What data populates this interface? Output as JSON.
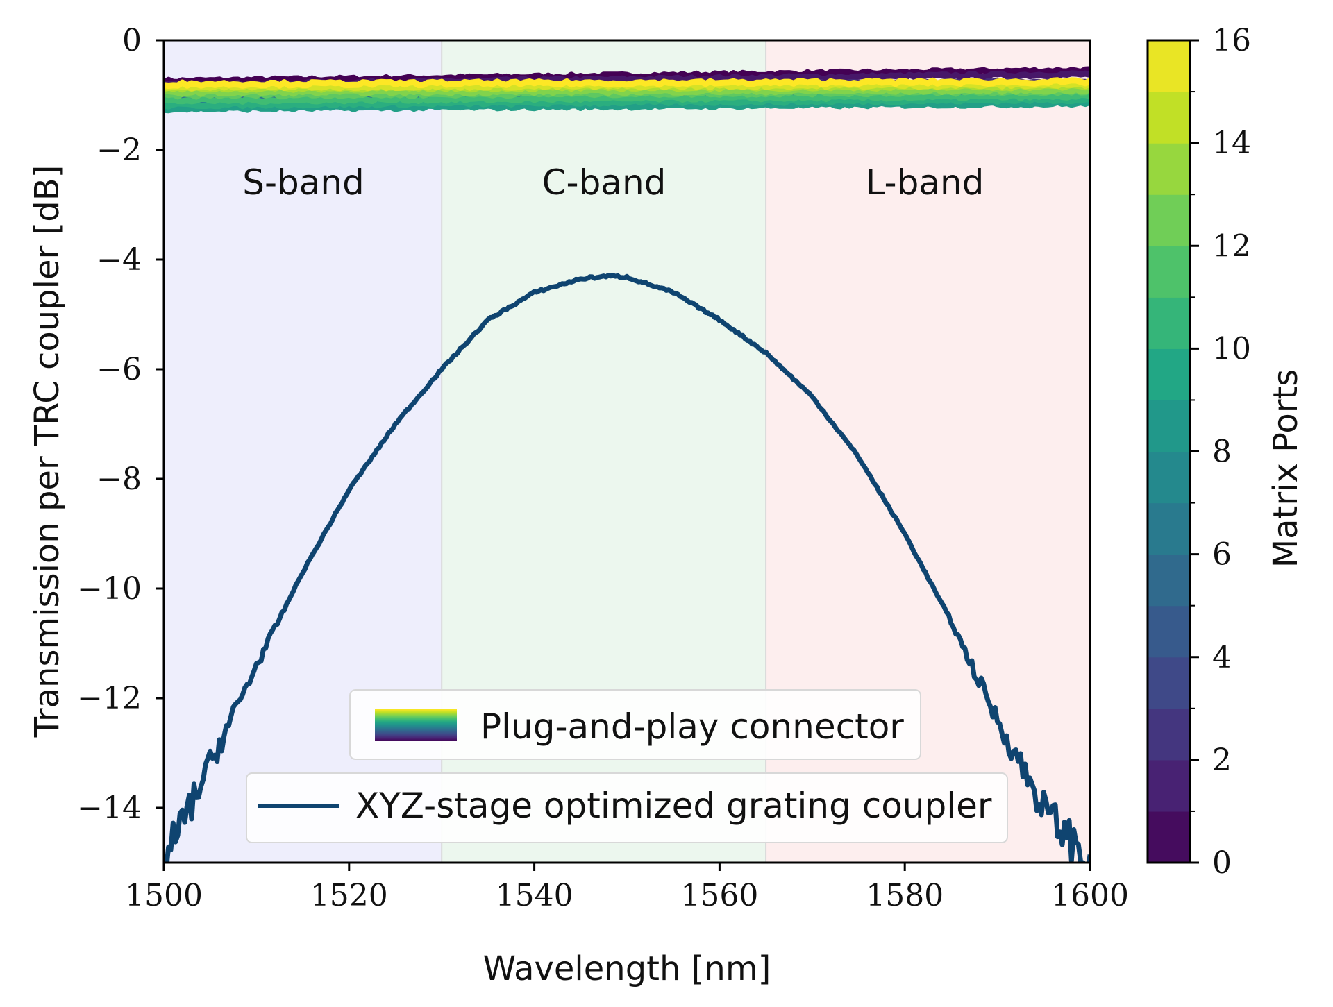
{
  "chart_data": {
    "type": "line",
    "xlabel": "Wavelength [nm]",
    "ylabel": "Transmission per TRC coupler [dB]",
    "xlim": [
      1500,
      1600
    ],
    "ylim": [
      -15,
      0
    ],
    "x_ticks": [
      "1500",
      "1520",
      "1540",
      "1560",
      "1580",
      "1600"
    ],
    "y_ticks": [
      "0",
      "−2",
      "−4",
      "−6",
      "−8",
      "−10",
      "−12",
      "−14"
    ],
    "grid": false,
    "bands": [
      {
        "label": "S-band",
        "x_start": 1500,
        "x_end": 1530,
        "color": "#eeeefc"
      },
      {
        "label": "C-band",
        "x_start": 1530,
        "x_end": 1565,
        "color": "#ecf7ee"
      },
      {
        "label": "L-band",
        "x_start": 1565,
        "x_end": 1600,
        "color": "#fdeeee"
      }
    ],
    "series": [
      {
        "name": "XYZ-stage optimized grating coupler",
        "color": "#0f4470",
        "x": [
          1500,
          1505,
          1510,
          1515,
          1520,
          1525,
          1530,
          1535,
          1540,
          1545,
          1548,
          1550,
          1555,
          1560,
          1565,
          1570,
          1575,
          1580,
          1585,
          1590,
          1595,
          1600
        ],
        "y": [
          -15.0,
          -13.2,
          -11.4,
          -9.7,
          -8.2,
          -7.0,
          -6.0,
          -5.1,
          -4.6,
          -4.35,
          -4.3,
          -4.32,
          -4.6,
          -5.1,
          -5.7,
          -6.5,
          -7.6,
          -9.0,
          -10.6,
          -12.4,
          -14.0,
          -15.0
        ]
      }
    ],
    "connector_ports": {
      "legend_label": "Plug-and-play connector",
      "mean_db": [
        -0.75,
        -0.82,
        -0.9,
        -0.95,
        -1.0,
        -1.05,
        -1.1,
        -1.15,
        -1.2,
        -1.25,
        -1.18,
        -1.1,
        -1.0,
        -0.95,
        -0.88,
        -0.85,
        -0.8
      ],
      "slope_db_per_nm": [
        0.002,
        0.002,
        0.0015,
        0.0015,
        0.001,
        0.001,
        0.001,
        0.0012,
        0.0012,
        0.001,
        0.001,
        0.0008,
        0.0006,
        0.0004,
        0.0004,
        0.0004,
        0.0004
      ]
    },
    "colorbar": {
      "label": "Matrix Ports",
      "range": [
        0,
        16
      ],
      "ticks": [
        "0",
        "2",
        "4",
        "6",
        "8",
        "10",
        "12",
        "14",
        "16"
      ],
      "colormap": "viridis"
    },
    "legend_placement": "bottom-center"
  }
}
